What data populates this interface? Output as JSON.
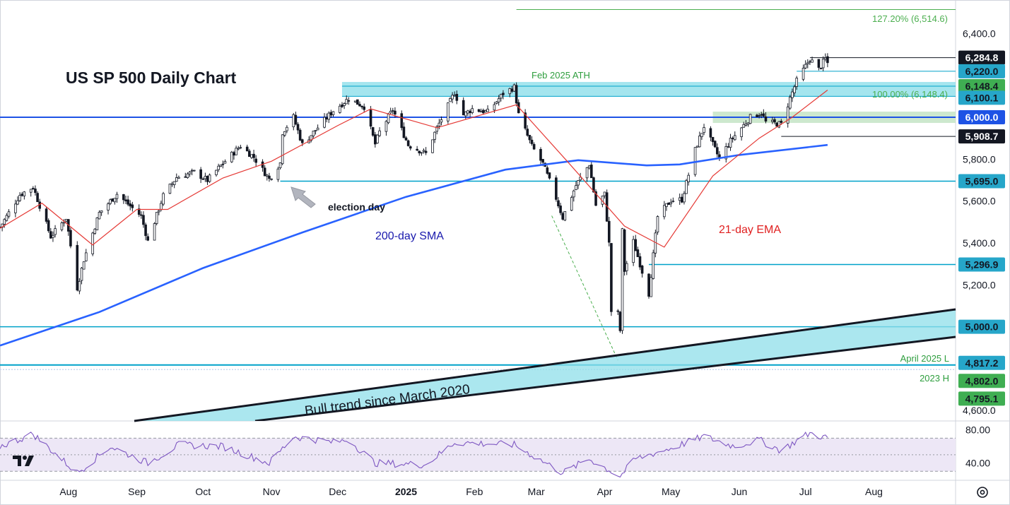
{
  "chart_data": {
    "type": "candlestick",
    "title": "US SP 500 Daily Chart",
    "x_ticks": [
      "Aug",
      "Sep",
      "Oct",
      "Nov",
      "Dec",
      "2025",
      "Feb",
      "Mar",
      "Apr",
      "May",
      "Jun",
      "Jul",
      "Aug"
    ],
    "y_ticks": [
      "6,400.0",
      "5,800.0",
      "5,600.0",
      "5,400.0",
      "5,200.0",
      "4,600.0"
    ],
    "ylim": [
      4550,
      6560
    ],
    "xlim": [
      "2024-07-01",
      "2025-09-07"
    ],
    "price_path": [
      [
        "2024-07-01",
        5475
      ],
      [
        "2024-07-10",
        5630
      ],
      [
        "2024-07-16",
        5667
      ],
      [
        "2024-07-24",
        5430
      ],
      [
        "2024-07-31",
        5520
      ],
      [
        "2024-08-05",
        5186
      ],
      [
        "2024-08-08",
        5320
      ],
      [
        "2024-08-15",
        5543
      ],
      [
        "2024-08-23",
        5634
      ],
      [
        "2024-09-03",
        5528
      ],
      [
        "2024-09-06",
        5408
      ],
      [
        "2024-09-13",
        5626
      ],
      [
        "2024-09-19",
        5713
      ],
      [
        "2024-09-27",
        5738
      ],
      [
        "2024-10-03",
        5699
      ],
      [
        "2024-10-10",
        5780
      ],
      [
        "2024-10-18",
        5864
      ],
      [
        "2024-10-24",
        5809
      ],
      [
        "2024-10-31",
        5705
      ],
      [
        "2024-11-05",
        5782
      ],
      [
        "2024-11-06",
        5929
      ],
      [
        "2024-11-11",
        6001
      ],
      [
        "2024-11-15",
        5870
      ],
      [
        "2024-11-19",
        5916
      ],
      [
        "2024-11-29",
        6032
      ],
      [
        "2024-12-06",
        6090
      ],
      [
        "2024-12-13",
        6051
      ],
      [
        "2024-12-18",
        5872
      ],
      [
        "2024-12-20",
        5930
      ],
      [
        "2024-12-26",
        6037
      ],
      [
        "2025-01-02",
        5868
      ],
      [
        "2025-01-10",
        5827
      ],
      [
        "2025-01-15",
        5949
      ],
      [
        "2025-01-23",
        6118
      ],
      [
        "2025-01-27",
        6012
      ],
      [
        "2025-01-31",
        6040
      ],
      [
        "2025-02-07",
        6025
      ],
      [
        "2025-02-14",
        6114
      ],
      [
        "2025-02-19",
        6144
      ],
      [
        "2025-02-21",
        6013
      ],
      [
        "2025-02-27",
        5861
      ],
      [
        "2025-03-04",
        5778
      ],
      [
        "2025-03-10",
        5614
      ],
      [
        "2025-03-13",
        5521
      ],
      [
        "2025-03-19",
        5675
      ],
      [
        "2025-03-25",
        5776
      ],
      [
        "2025-03-28",
        5580
      ],
      [
        "2025-04-01",
        5633
      ],
      [
        "2025-04-03",
        5396
      ],
      [
        "2025-04-04",
        5074
      ],
      [
        "2025-04-07",
        5062
      ],
      [
        "2025-04-08",
        4982
      ],
      [
        "2025-04-09",
        5457
      ],
      [
        "2025-04-10",
        5268
      ],
      [
        "2025-04-14",
        5406
      ],
      [
        "2025-04-21",
        5158
      ],
      [
        "2025-04-25",
        5525
      ],
      [
        "2025-05-01",
        5604
      ],
      [
        "2025-05-06",
        5607
      ],
      [
        "2025-05-12",
        5844
      ],
      [
        "2025-05-16",
        5958
      ],
      [
        "2025-05-23",
        5802
      ],
      [
        "2025-05-28",
        5888
      ],
      [
        "2025-06-06",
        6000
      ],
      [
        "2025-06-11",
        6022
      ],
      [
        "2025-06-13",
        5977
      ],
      [
        "2025-06-20",
        5967
      ],
      [
        "2025-06-24",
        6092
      ],
      [
        "2025-06-27",
        6173
      ],
      [
        "2025-07-03",
        6279
      ],
      [
        "2025-07-07",
        6229
      ],
      [
        "2025-07-10",
        6280
      ],
      [
        "2025-07-11",
        6259
      ]
    ],
    "series": [
      {
        "name": "200-day SMA",
        "values": [
          [
            "2024-07-01",
            4910
          ],
          [
            "2024-08-15",
            5070
          ],
          [
            "2024-10-01",
            5280
          ],
          [
            "2024-11-15",
            5450
          ],
          [
            "2025-01-01",
            5620
          ],
          [
            "2025-02-15",
            5750
          ],
          [
            "2025-03-20",
            5795
          ],
          [
            "2025-04-20",
            5770
          ],
          [
            "2025-05-05",
            5775
          ],
          [
            "2025-06-01",
            5820
          ],
          [
            "2025-07-11",
            5868
          ]
        ]
      },
      {
        "name": "21-day EMA",
        "values": [
          [
            "2024-07-01",
            5470
          ],
          [
            "2024-07-20",
            5590
          ],
          [
            "2024-08-12",
            5390
          ],
          [
            "2024-09-01",
            5560
          ],
          [
            "2024-09-15",
            5560
          ],
          [
            "2024-10-10",
            5710
          ],
          [
            "2024-11-01",
            5790
          ],
          [
            "2024-12-01",
            5960
          ],
          [
            "2024-12-16",
            6040
          ],
          [
            "2025-01-15",
            5950
          ],
          [
            "2025-02-20",
            6060
          ],
          [
            "2025-03-15",
            5790
          ],
          [
            "2025-04-10",
            5480
          ],
          [
            "2025-04-28",
            5380
          ],
          [
            "2025-05-20",
            5720
          ],
          [
            "2025-06-10",
            5900
          ],
          [
            "2025-06-25",
            6000
          ],
          [
            "2025-07-11",
            6130
          ]
        ]
      }
    ],
    "rsi": {
      "y_ticks": [
        "80.00",
        "40.00"
      ],
      "levels": [
        70,
        50,
        30
      ],
      "ylim": [
        20,
        90
      ],
      "values": [
        [
          "2024-07-01",
          60
        ],
        [
          "2024-07-16",
          75
        ],
        [
          "2024-08-05",
          28
        ],
        [
          "2024-08-20",
          60
        ],
        [
          "2024-09-06",
          40
        ],
        [
          "2024-09-20",
          62
        ],
        [
          "2024-10-10",
          60
        ],
        [
          "2024-10-31",
          40
        ],
        [
          "2024-11-11",
          72
        ],
        [
          "2024-11-29",
          65
        ],
        [
          "2024-12-06",
          68
        ],
        [
          "2024-12-18",
          40
        ],
        [
          "2025-01-10",
          38
        ],
        [
          "2025-01-23",
          65
        ],
        [
          "2025-02-19",
          62
        ],
        [
          "2025-03-13",
          28
        ],
        [
          "2025-03-25",
          45
        ],
        [
          "2025-04-08",
          24
        ],
        [
          "2025-04-15",
          45
        ],
        [
          "2025-05-01",
          58
        ],
        [
          "2025-05-16",
          72
        ],
        [
          "2025-05-30",
          60
        ],
        [
          "2025-06-10",
          68
        ],
        [
          "2025-06-20",
          55
        ],
        [
          "2025-06-30",
          72
        ],
        [
          "2025-07-03",
          76
        ],
        [
          "2025-07-11",
          70
        ]
      ]
    },
    "price_levels": [
      {
        "label": "127.20% (6,514.6)",
        "value": 6514.6
      },
      {
        "label": "6,284.8",
        "value": 6284.8
      },
      {
        "label": "6,220.0",
        "value": 6220.0
      },
      {
        "label": "6,148.4",
        "value": 6148.4
      },
      {
        "label": "100.00% (6,148.4)",
        "value": 6148.4
      },
      {
        "label": "6,100.1",
        "value": 6100.1
      },
      {
        "label": "6,000.0",
        "value": 6000.0
      },
      {
        "label": "5,908.7",
        "value": 5908.7
      },
      {
        "label": "5,695.0",
        "value": 5695.0
      },
      {
        "label": "5,296.9",
        "value": 5296.9
      },
      {
        "label": "5,000.0",
        "value": 5000.0
      },
      {
        "label": "4,817.2",
        "value": 4817.2
      },
      {
        "label": "4,802.0",
        "value": 4802.0
      },
      {
        "label": "4,795.1",
        "value": 4795.1
      }
    ],
    "annotations": [
      {
        "text": "Feb 2025 ATH"
      },
      {
        "text": "election day"
      },
      {
        "text": "200-day SMA"
      },
      {
        "text": "21-day EMA"
      },
      {
        "text": "April 2025 L"
      },
      {
        "text": "2023 H"
      },
      {
        "text": "Bull trend since March 2020"
      }
    ],
    "colors": {
      "up": "#089981",
      "down": "#f23645",
      "sma": "#2962ff",
      "ema": "#e53935",
      "zone": "#8fdfea",
      "green_zone": "#c8e6c9",
      "rsi": "#7e57c2",
      "rsi_band": "#ede7f6",
      "fib": "#4caf50",
      "level": "#00a2c9",
      "blue_level": "#1e53e5"
    }
  },
  "logo_icon": "tradingview-logo",
  "settings_icon": "gear-icon"
}
